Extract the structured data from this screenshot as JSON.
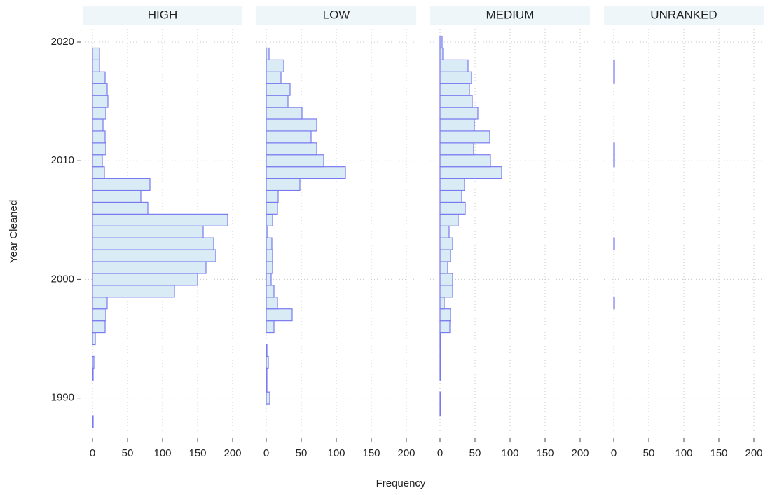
{
  "chart_data": {
    "type": "histogram",
    "orientation": "horizontal",
    "y_label": "Year Cleaned",
    "x_label": "Frequency",
    "bins": [
      1987.5,
      1988.5,
      1989.5,
      1990.5,
      1991.5,
      1992.5,
      1993.5,
      1994.5,
      1995.5,
      1996.5,
      1997.5,
      1998.5,
      1999.5,
      2000.5,
      2001.5,
      2002.5,
      2003.5,
      2004.5,
      2005.5,
      2006.5,
      2007.5,
      2008.5,
      2009.5,
      2010.5,
      2011.5,
      2012.5,
      2013.5,
      2014.5,
      2015.5,
      2016.5,
      2017.5,
      2018.5,
      2019.5,
      2020.5
    ],
    "series": [
      {
        "name": "HIGH",
        "values": [
          1,
          0,
          0,
          0,
          1,
          2,
          0,
          4,
          18,
          19,
          21,
          117,
          150,
          162,
          176,
          173,
          158,
          193,
          79,
          69,
          82,
          17,
          14,
          19,
          18,
          15,
          19,
          22,
          21,
          18,
          10,
          10,
          0
        ]
      },
      {
        "name": "LOW",
        "values": [
          0,
          0,
          5,
          1,
          1,
          3,
          1,
          0,
          11,
          37,
          16,
          11,
          7,
          9,
          9,
          8,
          2,
          9,
          16,
          17,
          48,
          113,
          82,
          72,
          64,
          72,
          51,
          31,
          34,
          21,
          25,
          4,
          0
        ]
      },
      {
        "name": "MEDIUM",
        "values": [
          0,
          1,
          1,
          0,
          1,
          1,
          1,
          1,
          14,
          15,
          6,
          18,
          18,
          11,
          15,
          18,
          13,
          26,
          36,
          31,
          35,
          88,
          72,
          48,
          71,
          49,
          54,
          46,
          42,
          45,
          40,
          4,
          3
        ]
      },
      {
        "name": "UNRANKED",
        "values": [
          0,
          0,
          0,
          0,
          0,
          0,
          0,
          0,
          0,
          0,
          1,
          0,
          0,
          0,
          0,
          1,
          0,
          0,
          0,
          0,
          0,
          0,
          1,
          1,
          0,
          0,
          0,
          0,
          0,
          1,
          1,
          0,
          0
        ]
      }
    ],
    "color": "#d9ecf5",
    "edge_color": "#7a7af0",
    "strip_color": "#eef6fa",
    "xlim": [
      -14,
      214
    ],
    "xticks": [
      0,
      50,
      100,
      150,
      200
    ],
    "ylim": [
      1987.2,
      2021.3
    ],
    "yticks": [
      1990,
      2000,
      2010,
      2020
    ],
    "grid": true
  }
}
